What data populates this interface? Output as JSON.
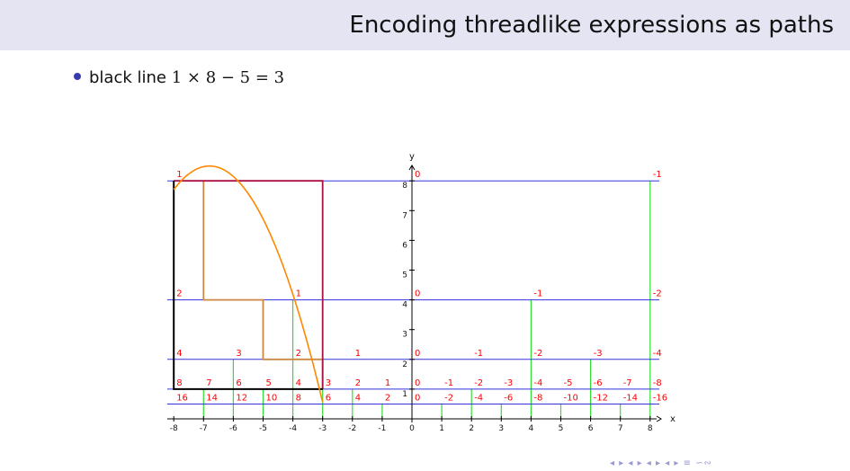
{
  "header": {
    "title": "Encoding threadlike expressions as paths"
  },
  "bullet": {
    "label": "black line",
    "expression": "1 × 8 − 5 = 3"
  },
  "nav": {
    "symbols": "◂ ▸ ◂ ▸ ◂ ▸ ◂ ▸ ≡ ∽∾"
  },
  "chart_data": {
    "type": "diagram",
    "xlabel": "x",
    "ylabel": "y",
    "x_ticks": [
      -8,
      -7,
      -6,
      -5,
      -4,
      -3,
      -2,
      -1,
      0,
      1,
      2,
      3,
      4,
      5,
      6,
      7,
      8
    ],
    "y_ticks": [
      1,
      2,
      3,
      4,
      5,
      6,
      7,
      8
    ],
    "xlim": [
      -8,
      8
    ],
    "ylim": [
      0,
      8
    ],
    "colors": {
      "blue": "#3333dd",
      "green": "#33dd33",
      "black": "#000000",
      "tan": "#cc8844",
      "crimson": "#aa1144",
      "orange": "#ff8800",
      "red": "#ff0000"
    },
    "blue_lines_y": [
      0.5,
      1,
      2,
      4,
      8
    ],
    "green_verticals": [
      {
        "x": -7,
        "y1": 0,
        "y2": 1
      },
      {
        "x": -6,
        "y1": 0,
        "y2": 2
      },
      {
        "x": -5,
        "y1": 0,
        "y2": 1
      },
      {
        "x": -4,
        "y1": 0,
        "y2": 4
      },
      {
        "x": -3,
        "y1": 0,
        "y2": 2
      },
      {
        "x": -2,
        "y1": 0,
        "y2": 1
      },
      {
        "x": -1,
        "y1": 0,
        "y2": 0.5
      },
      {
        "x": 1,
        "y1": 0,
        "y2": 0.5
      },
      {
        "x": 2,
        "y1": 0,
        "y2": 1
      },
      {
        "x": 3,
        "y1": 0,
        "y2": 0.5
      },
      {
        "x": 4,
        "y1": 0,
        "y2": 4
      },
      {
        "x": 5,
        "y1": 0,
        "y2": 0.5
      },
      {
        "x": 6,
        "y1": 0,
        "y2": 2
      },
      {
        "x": 7,
        "y1": 0,
        "y2": 0.5
      },
      {
        "x": 8,
        "y1": 0,
        "y2": 8
      }
    ],
    "black_path": [
      [
        -8,
        8
      ],
      [
        -8,
        1
      ],
      [
        -3,
        1
      ]
    ],
    "tan_path": [
      [
        -7,
        8
      ],
      [
        -7,
        4
      ],
      [
        -5,
        4
      ],
      [
        -5,
        2
      ],
      [
        -3,
        2
      ],
      [
        -3,
        1
      ]
    ],
    "crimson_path": [
      [
        -8,
        8
      ],
      [
        -3,
        8
      ],
      [
        -3,
        1
      ]
    ],
    "orange_curve": {
      "x_from": -8,
      "x_to": -3,
      "vertex": [
        -6.8,
        8.5
      ],
      "a": -0.55
    },
    "labels": [
      {
        "x": -8,
        "y": 8,
        "t": "1"
      },
      {
        "x": 0,
        "y": 8,
        "t": "0"
      },
      {
        "x": 8,
        "y": 8,
        "t": "-1"
      },
      {
        "x": -8,
        "y": 4,
        "t": "2"
      },
      {
        "x": -4,
        "y": 4,
        "t": "1"
      },
      {
        "x": 0,
        "y": 4,
        "t": "0"
      },
      {
        "x": 4,
        "y": 4,
        "t": "-1"
      },
      {
        "x": 8,
        "y": 4,
        "t": "-2"
      },
      {
        "x": -8,
        "y": 2,
        "t": "4"
      },
      {
        "x": -6,
        "y": 2,
        "t": "3"
      },
      {
        "x": -4,
        "y": 2,
        "t": "2"
      },
      {
        "x": -2,
        "y": 2,
        "t": "1"
      },
      {
        "x": 0,
        "y": 2,
        "t": "0"
      },
      {
        "x": 2,
        "y": 2,
        "t": "-1"
      },
      {
        "x": 4,
        "y": 2,
        "t": "-2"
      },
      {
        "x": 6,
        "y": 2,
        "t": "-3"
      },
      {
        "x": 8,
        "y": 2,
        "t": "-4"
      },
      {
        "x": -8,
        "y": 1,
        "t": "8"
      },
      {
        "x": -7,
        "y": 1,
        "t": "7"
      },
      {
        "x": -6,
        "y": 1,
        "t": "6"
      },
      {
        "x": -5,
        "y": 1,
        "t": "5"
      },
      {
        "x": -4,
        "y": 1,
        "t": "4"
      },
      {
        "x": -3,
        "y": 1,
        "t": "3"
      },
      {
        "x": -2,
        "y": 1,
        "t": "2"
      },
      {
        "x": -1,
        "y": 1,
        "t": "1"
      },
      {
        "x": 0,
        "y": 1,
        "t": "0"
      },
      {
        "x": 1,
        "y": 1,
        "t": "-1"
      },
      {
        "x": 2,
        "y": 1,
        "t": "-2"
      },
      {
        "x": 3,
        "y": 1,
        "t": "-3"
      },
      {
        "x": 4,
        "y": 1,
        "t": "-4"
      },
      {
        "x": 5,
        "y": 1,
        "t": "-5"
      },
      {
        "x": 6,
        "y": 1,
        "t": "-6"
      },
      {
        "x": 7,
        "y": 1,
        "t": "-7"
      },
      {
        "x": 8,
        "y": 1,
        "t": "-8"
      },
      {
        "x": -8,
        "y": 0.5,
        "t": "16"
      },
      {
        "x": -7,
        "y": 0.5,
        "t": "14"
      },
      {
        "x": -6,
        "y": 0.5,
        "t": "12"
      },
      {
        "x": -5,
        "y": 0.5,
        "t": "10"
      },
      {
        "x": -4,
        "y": 0.5,
        "t": "8"
      },
      {
        "x": -3,
        "y": 0.5,
        "t": "6"
      },
      {
        "x": -2,
        "y": 0.5,
        "t": "4"
      },
      {
        "x": -1,
        "y": 0.5,
        "t": "2"
      },
      {
        "x": 0,
        "y": 0.5,
        "t": "0"
      },
      {
        "x": 1,
        "y": 0.5,
        "t": "-2"
      },
      {
        "x": 2,
        "y": 0.5,
        "t": "-4"
      },
      {
        "x": 3,
        "y": 0.5,
        "t": "-6"
      },
      {
        "x": 4,
        "y": 0.5,
        "t": "-8"
      },
      {
        "x": 5,
        "y": 0.5,
        "t": "-10"
      },
      {
        "x": 6,
        "y": 0.5,
        "t": "-12"
      },
      {
        "x": 7,
        "y": 0.5,
        "t": "-14"
      },
      {
        "x": 8,
        "y": 0.5,
        "t": "-16"
      }
    ]
  }
}
